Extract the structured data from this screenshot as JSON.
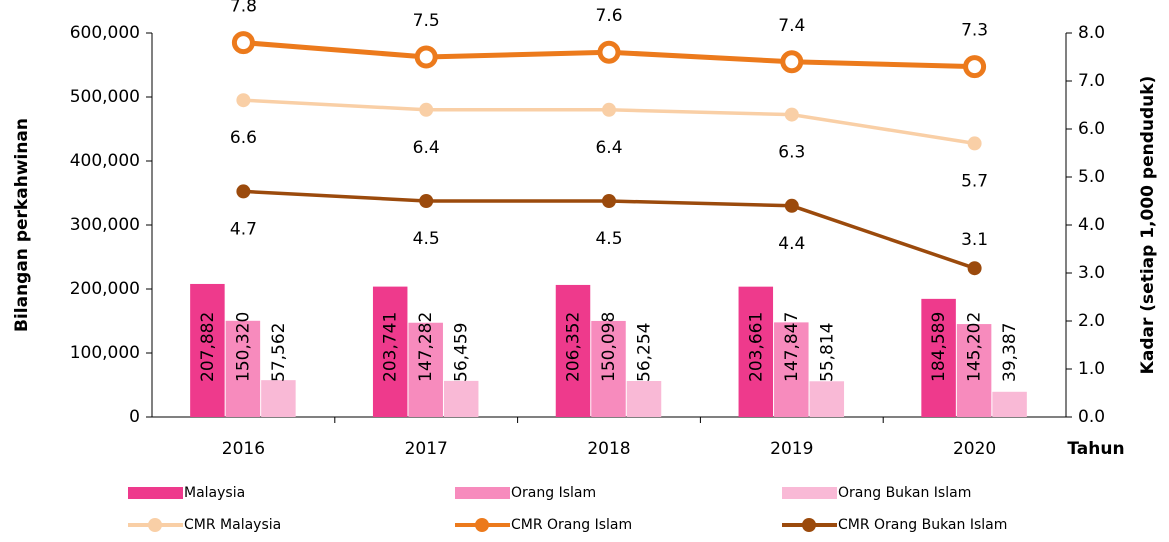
{
  "chart_data": {
    "type": "bar_line",
    "y_label": "Bilangan perkahwinan",
    "y2_label": "Kadar (setiap 1,000 penduduk)",
    "x_label": "Tahun",
    "categories": [
      "2016",
      "2017",
      "2018",
      "2019",
      "2020"
    ],
    "ylim": [
      0,
      600000
    ],
    "yticks": [
      0,
      {
        "value": 100000,
        "label": "100,000"
      },
      {
        "value": 200000,
        "label": "200,000"
      },
      {
        "value": 300000,
        "label": "300,000"
      },
      {
        "value": 400000,
        "label": "400,000"
      },
      {
        "value": 500000,
        "label": "500,000"
      },
      {
        "value": 600000,
        "label": "600,000"
      }
    ],
    "y2lim": [
      0,
      8
    ],
    "y2ticks": [
      {
        "value": 0,
        "label": "0.0"
      },
      {
        "value": 1,
        "label": "1.0"
      },
      {
        "value": 2,
        "label": "2.0"
      },
      {
        "value": 3,
        "label": "3.0"
      },
      {
        "value": 4,
        "label": "4.0"
      },
      {
        "value": 5,
        "label": "5.0"
      },
      {
        "value": 6,
        "label": "6.0"
      },
      {
        "value": 7,
        "label": "7.0"
      },
      {
        "value": 8,
        "label": "8.0"
      }
    ],
    "series": [
      {
        "name": "Malaysia",
        "kind": "bar",
        "color": "#ee3a8c",
        "values": [
          207882,
          203741,
          206352,
          203661,
          184589
        ],
        "value_labels": [
          "207,882",
          "203,741",
          "206,352",
          "203,661",
          "184,589"
        ]
      },
      {
        "name": "Orang Islam",
        "kind": "bar",
        "color": "#f78bbd",
        "values": [
          150320,
          147282,
          150098,
          147847,
          145202
        ],
        "value_labels": [
          "150,320",
          "147,282",
          "150,098",
          "147,847",
          "145,202"
        ]
      },
      {
        "name": "Orang Bukan Islam",
        "kind": "bar",
        "color": "#f9b9d6",
        "values": [
          57562,
          56459,
          56254,
          55814,
          39387
        ],
        "value_labels": [
          "57,562",
          "56,459",
          "56,254",
          "55,814",
          "39,387"
        ]
      },
      {
        "name": "CMR Malaysia",
        "kind": "line",
        "axis": "y2",
        "color": "#f9cfa6",
        "values": [
          6.6,
          6.4,
          6.4,
          6.3,
          5.7
        ]
      },
      {
        "name": "CMR Orang Islam",
        "kind": "line",
        "axis": "y2",
        "color": "#ec7a1c",
        "values": [
          7.8,
          7.5,
          7.6,
          7.4,
          7.3
        ]
      },
      {
        "name": "CMR Orang Bukan Islam",
        "kind": "line",
        "axis": "y2",
        "color": "#9b4a0c",
        "values": [
          4.7,
          4.5,
          4.5,
          4.4,
          3.1
        ]
      }
    ]
  }
}
